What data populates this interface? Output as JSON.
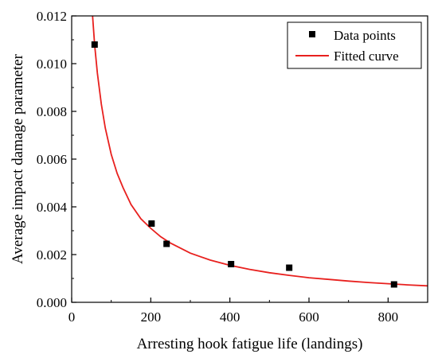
{
  "chart_data": {
    "type": "scatter",
    "xlabel": "Arresting hook fatigue life (landings)",
    "ylabel": "Average impact damage parameter",
    "xlim": [
      0,
      900
    ],
    "ylim": [
      0,
      0.012
    ],
    "x_ticks": [
      0,
      200,
      400,
      600,
      800
    ],
    "x_tick_labels": [
      "0",
      "200",
      "400",
      "600",
      "800"
    ],
    "y_ticks": [
      0,
      0.002,
      0.004,
      0.006,
      0.008,
      0.01,
      0.012
    ],
    "y_tick_labels": [
      "0.000",
      "0.002",
      "0.004",
      "0.006",
      "0.008",
      "0.010",
      "0.012"
    ],
    "grid": false,
    "legend_position": "top-right",
    "series": [
      {
        "name": "Data points",
        "kind": "scatter",
        "color": "#000000",
        "marker": "square",
        "x": [
          58,
          202,
          240,
          403,
          550,
          815
        ],
        "y": [
          0.0108,
          0.0033,
          0.00245,
          0.0016,
          0.00145,
          0.00075
        ]
      },
      {
        "name": "Fitted curve",
        "kind": "line",
        "color": "#e8201e",
        "x": [
          52,
          58,
          65,
          75,
          85,
          100,
          115,
          130,
          150,
          175,
          200,
          225,
          250,
          300,
          350,
          400,
          450,
          500,
          550,
          600,
          650,
          700,
          750,
          800,
          850,
          900
        ],
        "y": [
          0.0122,
          0.0108,
          0.0096,
          0.0083,
          0.0073,
          0.0062,
          0.0054,
          0.0048,
          0.0041,
          0.0035,
          0.0031,
          0.00275,
          0.00248,
          0.00206,
          0.00177,
          0.00155,
          0.00138,
          0.00124,
          0.00113,
          0.00103,
          0.00096,
          0.00089,
          0.00083,
          0.00078,
          0.00073,
          0.00069
        ]
      }
    ]
  }
}
